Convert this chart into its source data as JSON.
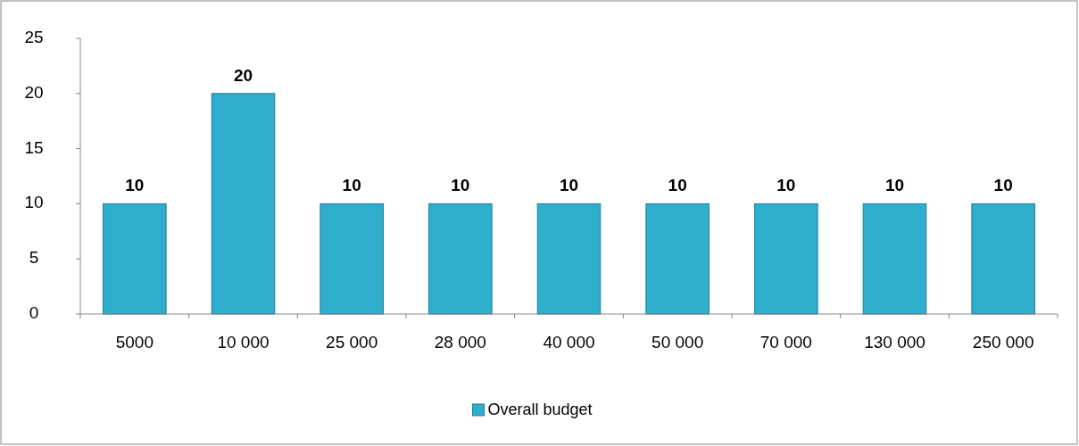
{
  "chart_data": {
    "type": "bar",
    "categories": [
      "5000",
      "10 000",
      "25 000",
      "28 000",
      "40 000",
      "50 000",
      "70 000",
      "130 000",
      "250 000"
    ],
    "series": [
      {
        "name": "Overall budget",
        "color": "#2fadcc",
        "values": [
          10,
          20,
          10,
          10,
          10,
          10,
          10,
          10,
          10
        ]
      }
    ],
    "ylim": [
      0,
      25
    ],
    "yticks": [
      0,
      5,
      10,
      15,
      20,
      25
    ],
    "grid": false,
    "legend": "bottom",
    "data_labels": true
  }
}
